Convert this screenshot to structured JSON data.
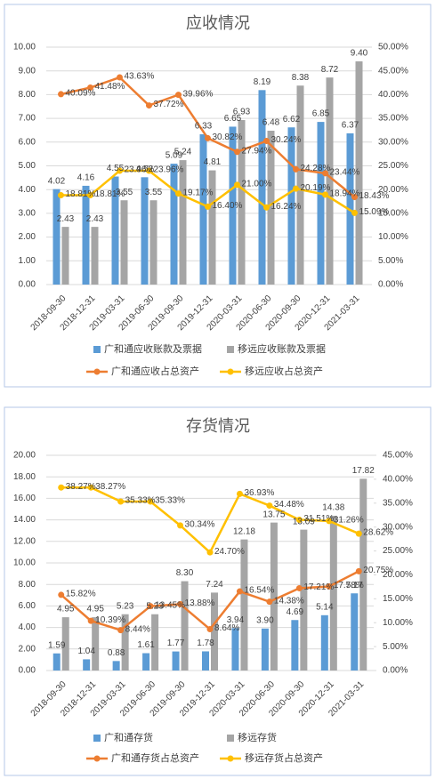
{
  "chart_data": [
    {
      "type": "combo",
      "title": "应收情况",
      "categories": [
        "2018-09-30",
        "2018-12-31",
        "2019-03-31",
        "2019-06-30",
        "2019-09-30",
        "2019-12-31",
        "2020-03-31",
        "2020-06-30",
        "2020-09-30",
        "2020-12-31",
        "2021-03-31"
      ],
      "ylim": [
        0,
        10
      ],
      "yticks": [
        {
          "value": 0,
          "label": "0.00"
        },
        {
          "value": 1,
          "label": "1.00"
        },
        {
          "value": 2,
          "label": "2.00"
        },
        {
          "value": 3,
          "label": "3.00"
        },
        {
          "value": 4,
          "label": "4.00"
        },
        {
          "value": 5,
          "label": "5.00"
        },
        {
          "value": 6,
          "label": "6.00"
        },
        {
          "value": 7,
          "label": "7.00"
        },
        {
          "value": 8,
          "label": "8.00"
        },
        {
          "value": 9,
          "label": "9.00"
        },
        {
          "value": 10,
          "label": "10.00"
        }
      ],
      "y2lim": [
        0,
        50
      ],
      "y2ticks": [
        {
          "value": 0,
          "label": "0.00%"
        },
        {
          "value": 5,
          "label": "5.00%"
        },
        {
          "value": 10,
          "label": "10.00%"
        },
        {
          "value": 15,
          "label": "15.00%"
        },
        {
          "value": 20,
          "label": "20.00%"
        },
        {
          "value": 25,
          "label": "25.00%"
        },
        {
          "value": 30,
          "label": "30.00%"
        },
        {
          "value": 35,
          "label": "35.00%"
        },
        {
          "value": 40,
          "label": "40.00%"
        },
        {
          "value": 45,
          "label": "45.00%"
        },
        {
          "value": 50,
          "label": "50.00%"
        }
      ],
      "grid": true,
      "series": [
        {
          "name": "广和通应收账款及票据",
          "type": "bar",
          "color": "#5b9bd5",
          "values": [
            4.02,
            4.16,
            4.55,
            4.52,
            5.09,
            6.33,
            6.65,
            8.19,
            6.62,
            6.85,
            6.37
          ],
          "value_labels": [
            "4.02",
            "4.16",
            "4.55",
            "4.52",
            "5.09",
            "6.33",
            "6.65",
            "8.19",
            "6.62",
            "6.85",
            "6.37"
          ]
        },
        {
          "name": "移远应收账款及票据",
          "type": "bar",
          "color": "#a5a5a5",
          "values": [
            2.43,
            2.43,
            3.55,
            3.55,
            5.24,
            4.81,
            6.93,
            6.48,
            8.38,
            8.72,
            9.4
          ],
          "value_labels": [
            "2.43",
            "2.43",
            "3.55",
            "3.55",
            "5.24",
            "4.81",
            "6.93",
            "6.48",
            "8.38",
            "8.72",
            "9.40"
          ]
        },
        {
          "name": "广和通应收占总资产",
          "type": "line",
          "axis": "y2",
          "color": "#ed7d31",
          "values": [
            40.09,
            41.48,
            43.63,
            37.72,
            39.96,
            30.82,
            27.94,
            30.24,
            24.28,
            23.44,
            18.43
          ],
          "value_labels": [
            "40.09%",
            "41.48%",
            "43.63%",
            "37.72%",
            "39.96%",
            "30.82%",
            "27.94%",
            "30.24%",
            "24.28%",
            "23.44%",
            "18.43%"
          ]
        },
        {
          "name": "移远应收占总资产",
          "type": "line",
          "axis": "y2",
          "color": "#ffc000",
          "values": [
            18.81,
            18.81,
            23.96,
            23.96,
            19.17,
            16.4,
            21.0,
            16.24,
            20.19,
            18.94,
            15.09
          ],
          "value_labels": [
            "18.81%",
            "18.81%",
            "23.96%",
            "23.96%",
            "19.17%",
            "16.40%",
            "21.00%",
            "16.24%",
            "20.19%",
            "18.94%",
            "15.09%"
          ]
        }
      ]
    },
    {
      "type": "combo",
      "title": "存货情况",
      "categories": [
        "2018-09-30",
        "2018-12-31",
        "2019-03-31",
        "2019-06-30",
        "2019-09-30",
        "2019-12-31",
        "2020-03-31",
        "2020-06-30",
        "2020-09-30",
        "2020-12-31",
        "2021-03-31"
      ],
      "ylim": [
        0,
        20
      ],
      "yticks": [
        {
          "value": 0,
          "label": "0.00"
        },
        {
          "value": 2,
          "label": "2.00"
        },
        {
          "value": 4,
          "label": "4.00"
        },
        {
          "value": 6,
          "label": "6.00"
        },
        {
          "value": 8,
          "label": "8.00"
        },
        {
          "value": 10,
          "label": "10.00"
        },
        {
          "value": 12,
          "label": "12.00"
        },
        {
          "value": 14,
          "label": "14.00"
        },
        {
          "value": 16,
          "label": "16.00"
        },
        {
          "value": 18,
          "label": "18.00"
        },
        {
          "value": 20,
          "label": "20.00"
        }
      ],
      "y2lim": [
        0,
        45
      ],
      "y2ticks": [
        {
          "value": 0,
          "label": "0.00%"
        },
        {
          "value": 5,
          "label": "5.00%"
        },
        {
          "value": 10,
          "label": "10.00%"
        },
        {
          "value": 15,
          "label": "15.00%"
        },
        {
          "value": 20,
          "label": "20.00%"
        },
        {
          "value": 25,
          "label": "25.00%"
        },
        {
          "value": 30,
          "label": "30.00%"
        },
        {
          "value": 35,
          "label": "35.00%"
        },
        {
          "value": 40,
          "label": "40.00%"
        },
        {
          "value": 45,
          "label": "45.00%"
        }
      ],
      "grid": true,
      "series": [
        {
          "name": "广和通存货",
          "type": "bar",
          "color": "#5b9bd5",
          "values": [
            1.59,
            1.04,
            0.88,
            1.61,
            1.77,
            1.78,
            3.94,
            3.9,
            4.69,
            5.14,
            7.17
          ],
          "value_labels": [
            "1.59",
            "1.04",
            "0.88",
            "1.61",
            "1.77",
            "1.78",
            "3.94",
            "3.90",
            "4.69",
            "5.14",
            "7.17"
          ]
        },
        {
          "name": "移远存货",
          "type": "bar",
          "color": "#a5a5a5",
          "values": [
            4.95,
            4.95,
            5.23,
            5.23,
            8.3,
            7.24,
            12.18,
            13.75,
            13.09,
            14.38,
            17.82
          ],
          "value_labels": [
            "4.95",
            "4.95",
            "5.23",
            "5.23",
            "8.30",
            "7.24",
            "12.18",
            "13.75",
            "13.09",
            "14.38",
            "17.82"
          ]
        },
        {
          "name": "广和通存货占总资产",
          "type": "line",
          "axis": "y2",
          "color": "#ed7d31",
          "values": [
            15.82,
            10.39,
            8.44,
            13.45,
            13.88,
            8.64,
            16.54,
            14.38,
            17.21,
            17.58,
            20.75
          ],
          "value_labels": [
            "15.82%",
            "10.39%",
            "8.44%",
            "13.45%",
            "13.88%",
            "8.64%",
            "16.54%",
            "14.38%",
            "17.21%",
            "17.58%",
            "20.75%"
          ]
        },
        {
          "name": "移远存货占总资产",
          "type": "line",
          "axis": "y2",
          "color": "#ffc000",
          "values": [
            38.27,
            38.27,
            35.33,
            35.33,
            30.34,
            24.7,
            36.93,
            34.48,
            31.51,
            31.26,
            28.62
          ],
          "value_labels": [
            "38.27%",
            "38.27%",
            "35.33%",
            "35.33%",
            "30.34%",
            "24.70%",
            "36.93%",
            "34.48%",
            "31.51%",
            "31.26%",
            "28.62%"
          ]
        }
      ]
    }
  ]
}
